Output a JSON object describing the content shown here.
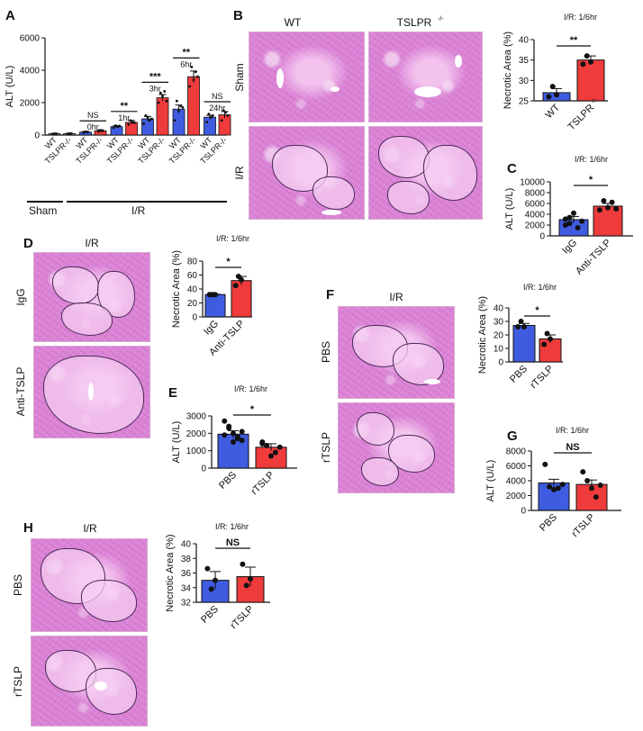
{
  "panels": {
    "A": {
      "letter": "A",
      "group_sham": "Sham",
      "group_ir": "I/R",
      "timepoints": [
        "0hr",
        "1hr",
        "3hr",
        "6hr",
        "24hr"
      ],
      "sig": [
        "NS",
        "**",
        "***",
        "**",
        "NS"
      ]
    },
    "B": {
      "letter": "B",
      "col_wt": "WT",
      "col_ko": "TSLPR",
      "ko_sup": "-/-",
      "row_sham": "Sham",
      "row_ir": "I/R",
      "title": "I/R: 1/6hr",
      "sig": "**"
    },
    "C": {
      "letter": "C",
      "title": "I/R: 1/6hr",
      "sig": "*"
    },
    "D": {
      "letter": "D",
      "header": "I/R",
      "row1": "IgG",
      "row2": "Anti-TSLP",
      "title": "I/R: 1/6hr",
      "sig": "*"
    },
    "E": {
      "letter": "E",
      "title": "I/R: 1/6hr",
      "sig": "*"
    },
    "F": {
      "letter": "F",
      "header": "I/R",
      "row1": "PBS",
      "row2": "rTSLP",
      "title": "I/R: 1/6hr",
      "sig": "*"
    },
    "G": {
      "letter": "G",
      "title": "I/R: 1/6hr",
      "sig": "NS"
    },
    "H": {
      "letter": "H",
      "header": "I/R",
      "row1": "PBS",
      "row2": "rTSLP",
      "title": "I/R: 1/6hr",
      "sig": "NS"
    }
  },
  "colors": {
    "wt": "#3f5ce0",
    "ko": "#ef3b3b",
    "sham": "#8a8a8a"
  },
  "chart_data": [
    {
      "id": "A",
      "type": "bar",
      "title": "",
      "xlabel": "",
      "ylabel": "ALT (U/L)",
      "ylim": [
        0,
        6000
      ],
      "yticks": [
        0,
        2000,
        4000,
        6000
      ],
      "categories": [
        "WT",
        "TSLPR-/-",
        "WT",
        "TSLPR-/-",
        "WT",
        "TSLPR-/-",
        "WT",
        "TSLPR-/-",
        "WT",
        "TSLPR-/-",
        "WT",
        "TSLPR-/-"
      ],
      "values": [
        80,
        85,
        180,
        260,
        520,
        780,
        1000,
        2300,
        1600,
        3600,
        1100,
        1250
      ],
      "errors": [
        20,
        20,
        40,
        60,
        60,
        120,
        150,
        200,
        250,
        350,
        120,
        200
      ],
      "points": [
        [
          60,
          90,
          80
        ],
        [
          70,
          100,
          90
        ],
        [
          150,
          200,
          190
        ],
        [
          220,
          300,
          260
        ],
        [
          450,
          580,
          520,
          560
        ],
        [
          650,
          900,
          800,
          760
        ],
        [
          700,
          1200,
          1100,
          900,
          1000
        ],
        [
          2000,
          2600,
          2400,
          2700,
          2100
        ],
        [
          900,
          2100,
          1500,
          1800,
          1700
        ],
        [
          3000,
          4200,
          3400,
          3900,
          3600
        ],
        [
          800,
          1300,
          1100,
          1200
        ],
        [
          900,
          1500,
          1400,
          1200
        ]
      ],
      "sham": [
        0,
        1
      ]
    },
    {
      "id": "B",
      "type": "bar",
      "title": "I/R: 1/6hr",
      "ylabel": "Necrotic Area (%)",
      "ylim": [
        25,
        40
      ],
      "yticks": [
        25,
        30,
        35,
        40
      ],
      "ytick_labels": [
        "25",
        "30",
        "35",
        "40"
      ],
      "categories": [
        "WT",
        "TSLPR"
      ],
      "cat_sup": [
        "",
        "-/-"
      ],
      "values": [
        27,
        35
      ],
      "errors": [
        1.0,
        1.0
      ],
      "points": [
        [
          26,
          28.5,
          26.5
        ],
        [
          34,
          36,
          34.5
        ]
      ]
    },
    {
      "id": "C",
      "type": "bar",
      "title": "I/R: 1/6hr",
      "ylabel": "ALT (U/L)",
      "ylim": [
        0,
        10000
      ],
      "yticks": [
        0,
        2000,
        4000,
        6000,
        8000,
        10000
      ],
      "ytick_labels": [
        "0",
        "2000",
        "4000",
        "6000",
        "8000",
        "10000"
      ],
      "categories": [
        "IgG",
        "Anti-TSLP"
      ],
      "cat_sup": [
        "",
        ""
      ],
      "values": [
        3000,
        5500
      ],
      "errors": [
        600,
        500
      ],
      "points": [
        [
          2000,
          3400,
          4200,
          1500,
          2700,
          3100,
          2300
        ],
        [
          4800,
          6500,
          5200,
          6200,
          5000
        ]
      ]
    },
    {
      "id": "D",
      "type": "bar",
      "title": "I/R: 1/6hr",
      "ylabel": "Necrotic Area (%)",
      "ylim": [
        0,
        80
      ],
      "yticks": [
        0,
        20,
        40,
        60,
        80
      ],
      "ytick_labels": [
        "0",
        "20",
        "40",
        "60",
        "80"
      ],
      "categories": [
        "IgG",
        "Anti-TSLP"
      ],
      "cat_sup": [
        "",
        ""
      ],
      "values": [
        32,
        52
      ],
      "errors": [
        0.5,
        6
      ],
      "points": [
        [
          32,
          32,
          32
        ],
        [
          45,
          58,
          53
        ]
      ]
    },
    {
      "id": "E",
      "type": "bar",
      "title": "I/R: 1/6hr",
      "ylabel": "ALT (U/L)",
      "ylim": [
        0,
        3000
      ],
      "yticks": [
        0,
        1000,
        2000,
        3000
      ],
      "ytick_labels": [
        "0",
        "1000",
        "2000",
        "3000"
      ],
      "categories": [
        "PBS",
        "rTSLP"
      ],
      "cat_sup": [
        "",
        ""
      ],
      "values": [
        1950,
        1200
      ],
      "errors": [
        200,
        200
      ],
      "points": [
        [
          2700,
          2300,
          2000,
          1800,
          1600,
          1900,
          2400,
          1500,
          1700,
          2100
        ],
        [
          1500,
          1300,
          700,
          900,
          1200,
          1400
        ]
      ]
    },
    {
      "id": "F",
      "type": "bar",
      "title": "I/R: 1/6hr",
      "ylabel": "Necrotic Area (%)",
      "ylim": [
        0,
        40
      ],
      "yticks": [
        0,
        10,
        20,
        30,
        40
      ],
      "ytick_labels": [
        "0",
        "10",
        "20",
        "30",
        "40"
      ],
      "categories": [
        "PBS",
        "rTSLP"
      ],
      "cat_sup": [
        "",
        ""
      ],
      "values": [
        27,
        17
      ],
      "errors": [
        1.5,
        3
      ],
      "points": [
        [
          26,
          30,
          26
        ],
        [
          13,
          21,
          17
        ]
      ]
    },
    {
      "id": "G",
      "type": "bar",
      "title": "I/R: 1/6hr",
      "ylabel": "ALT (U/L)",
      "ylim": [
        0,
        8000
      ],
      "yticks": [
        0,
        2000,
        4000,
        6000,
        8000
      ],
      "ytick_labels": [
        "0",
        "2000",
        "4000",
        "6000",
        "8000"
      ],
      "categories": [
        "PBS",
        "rTSLP"
      ],
      "cat_sup": [
        "",
        ""
      ],
      "values": [
        3700,
        3500
      ],
      "errors": [
        500,
        600
      ],
      "points": [
        [
          6200,
          3200,
          2800,
          3000,
          3500
        ],
        [
          5200,
          4000,
          3000,
          1800,
          3400
        ]
      ]
    },
    {
      "id": "H",
      "type": "bar",
      "title": "I/R: 1/6hr",
      "ylabel": "Necrotic Area (%)",
      "ylim": [
        32,
        40
      ],
      "yticks": [
        32,
        34,
        36,
        38,
        40
      ],
      "ytick_labels": [
        "32",
        "34",
        "36",
        "38",
        "40"
      ],
      "categories": [
        "PBS",
        "rTSLP"
      ],
      "cat_sup": [
        "",
        ""
      ],
      "values": [
        35,
        35.5
      ],
      "errors": [
        1.2,
        1.3
      ],
      "points": [
        [
          36.6,
          33.8,
          35
        ],
        [
          37.2,
          34.3,
          35.2
        ]
      ]
    }
  ]
}
